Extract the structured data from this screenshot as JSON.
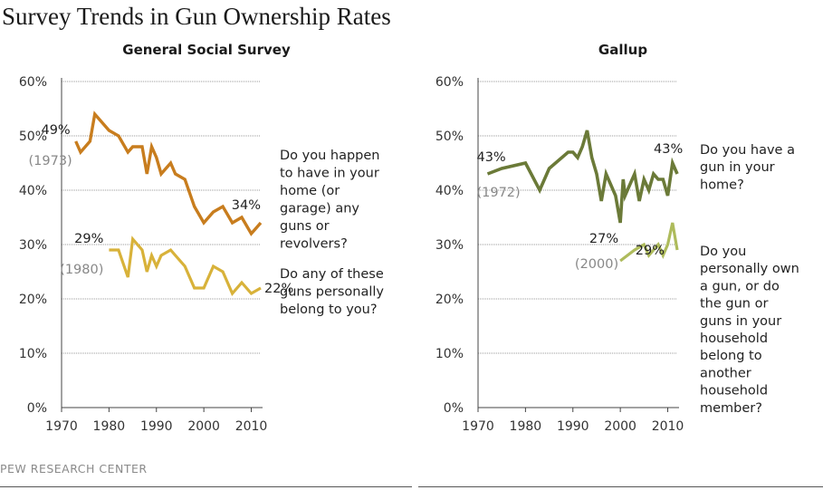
{
  "title": "Survey Trends in Gun Ownership Rates",
  "source": "PEW RESEARCH CENTER",
  "colors": {
    "gss_household": "#c87d1e",
    "gss_personal": "#d8b23a",
    "gallup_household": "#6b7a38",
    "gallup_personal": "#aebb5c",
    "gridline": "#999999",
    "axis": "#444444",
    "annotation_year": "#888888"
  },
  "chart_data": [
    {
      "type": "line",
      "title": "General Social Survey",
      "xlim": [
        1970,
        2012
      ],
      "ylim": [
        0,
        60
      ],
      "xticks": [
        "1970",
        "1980",
        "1990",
        "2000",
        "2010"
      ],
      "yticks": [
        "0%",
        "10%",
        "20%",
        "30%",
        "40%",
        "50%",
        "60%"
      ],
      "grid": true,
      "series": [
        {
          "question": [
            "Do you happen",
            "to have in your",
            "home (or",
            "garage) any",
            "guns or",
            "revolvers?"
          ],
          "start_label": "49%",
          "start_year_label": "(1973)",
          "end_label": "34%",
          "points": [
            [
              1973,
              49
            ],
            [
              1974,
              47
            ],
            [
              1976,
              49
            ],
            [
              1977,
              54
            ],
            [
              1980,
              51
            ],
            [
              1982,
              50
            ],
            [
              1984,
              47
            ],
            [
              1985,
              48
            ],
            [
              1987,
              48
            ],
            [
              1988,
              43
            ],
            [
              1989,
              48
            ],
            [
              1990,
              46
            ],
            [
              1991,
              43
            ],
            [
              1993,
              45
            ],
            [
              1994,
              43
            ],
            [
              1996,
              42
            ],
            [
              1998,
              37
            ],
            [
              2000,
              34
            ],
            [
              2002,
              36
            ],
            [
              2004,
              37
            ],
            [
              2006,
              34
            ],
            [
              2008,
              35
            ],
            [
              2010,
              32
            ],
            [
              2012,
              34
            ]
          ]
        },
        {
          "question": [
            "Do any of these",
            "guns personally",
            "belong to you?"
          ],
          "start_label": "29%",
          "start_year_label": "(1980)",
          "end_label": "22%",
          "points": [
            [
              1980,
              29
            ],
            [
              1982,
              29
            ],
            [
              1984,
              24
            ],
            [
              1985,
              31
            ],
            [
              1987,
              29
            ],
            [
              1988,
              25
            ],
            [
              1989,
              28
            ],
            [
              1990,
              26
            ],
            [
              1991,
              28
            ],
            [
              1993,
              29
            ],
            [
              1994,
              28
            ],
            [
              1996,
              26
            ],
            [
              1998,
              22
            ],
            [
              2000,
              22
            ],
            [
              2002,
              26
            ],
            [
              2004,
              25
            ],
            [
              2006,
              21
            ],
            [
              2008,
              23
            ],
            [
              2010,
              21
            ],
            [
              2012,
              22
            ]
          ]
        }
      ]
    },
    {
      "type": "line",
      "title": "Gallup",
      "xlim": [
        1970,
        2012
      ],
      "ylim": [
        0,
        60
      ],
      "xticks": [
        "1970",
        "1980",
        "1990",
        "2000",
        "2010"
      ],
      "yticks": [
        "0%",
        "10%",
        "20%",
        "30%",
        "40%",
        "50%",
        "60%"
      ],
      "grid": true,
      "series": [
        {
          "question": [
            "Do you have a",
            "gun in your",
            "home?"
          ],
          "start_label": "43%",
          "start_year_label": "(1972)",
          "end_label": "43%",
          "points": [
            [
              1972,
              43
            ],
            [
              1975,
              44
            ],
            [
              1980,
              45
            ],
            [
              1983,
              40
            ],
            [
              1985,
              44
            ],
            [
              1989,
              47
            ],
            [
              1990,
              47
            ],
            [
              1991,
              46
            ],
            [
              1992,
              48
            ],
            [
              1993,
              51
            ],
            [
              1994,
              46
            ],
            [
              1995,
              43
            ],
            [
              1996,
              38
            ],
            [
              1997,
              43
            ],
            [
              1999,
              39
            ],
            [
              2000,
              34
            ],
            [
              2000.6,
              42
            ],
            [
              2001,
              39
            ],
            [
              2002,
              41
            ],
            [
              2003,
              43
            ],
            [
              2004,
              38
            ],
            [
              2005,
              42
            ],
            [
              2006,
              40
            ],
            [
              2007,
              43
            ],
            [
              2008,
              42
            ],
            [
              2009,
              42
            ],
            [
              2010,
              39
            ],
            [
              2011,
              45
            ],
            [
              2012,
              43
            ]
          ]
        },
        {
          "question": [
            "Do you",
            "personally own",
            "a gun, or do",
            "the gun or",
            "guns in your",
            "household",
            "belong to",
            "another",
            "household",
            "member?"
          ],
          "start_label": "27%",
          "start_year_label": "(2000)",
          "end_label": "29%",
          "points": [
            [
              2000,
              27
            ],
            [
              2003,
              29
            ],
            [
              2005,
              30
            ],
            [
              2006,
              28
            ],
            [
              2007,
              29
            ],
            [
              2008,
              30
            ],
            [
              2009,
              28
            ],
            [
              2010,
              30
            ],
            [
              2011,
              34
            ],
            [
              2012,
              29
            ]
          ]
        }
      ]
    }
  ]
}
